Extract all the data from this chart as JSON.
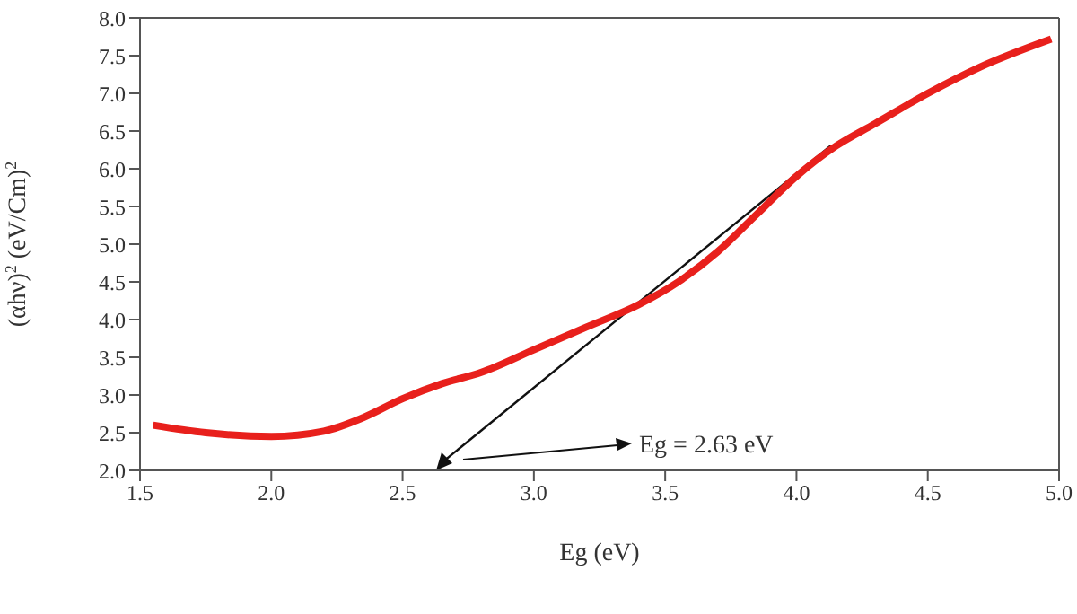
{
  "chart_data": {
    "type": "line",
    "xlabel": "Eg (eV)",
    "ylabel": "(αhν)$^{2}$ (eV/Cm)$^{2}$",
    "xlim": [
      1.5,
      5.0
    ],
    "xticks": [
      {
        "value": 1.5,
        "label": "1.5"
      },
      {
        "value": 2,
        "label": "2.0"
      },
      {
        "value": 2.5,
        "label": "2.5"
      },
      {
        "value": 3,
        "label": "3.0"
      },
      {
        "value": 3.5,
        "label": "3.5"
      },
      {
        "value": 4,
        "label": "4.0"
      },
      {
        "value": 4.5,
        "label": "4.5"
      },
      {
        "value": 5,
        "label": "5.0"
      }
    ],
    "ylim": [
      2.0,
      8.0
    ],
    "yticks": [
      {
        "value": 2,
        "label": "2.0"
      },
      {
        "value": 2.5,
        "label": "2.5"
      },
      {
        "value": 3,
        "label": "3.0"
      },
      {
        "value": 3.5,
        "label": "3.5"
      },
      {
        "value": 4,
        "label": "4.0"
      },
      {
        "value": 4.5,
        "label": "4.5"
      },
      {
        "value": 5,
        "label": "5.0"
      },
      {
        "value": 5.5,
        "label": "5.5"
      },
      {
        "value": 6,
        "label": "6.0"
      },
      {
        "value": 6.5,
        "label": "6.5"
      },
      {
        "value": 7,
        "label": "7.0"
      },
      {
        "value": 7.5,
        "label": "7.5"
      },
      {
        "value": 8,
        "label": "8.0"
      }
    ],
    "marker": "none",
    "line_style": "solid",
    "series": [
      {
        "color": "#e8201c",
        "x": [
          1.55,
          1.75,
          2.0,
          2.2,
          2.35,
          2.5,
          2.65,
          2.8,
          3.0,
          3.2,
          3.4,
          3.55,
          3.7,
          3.85,
          4.0,
          4.15,
          4.3,
          4.5,
          4.7,
          4.97
        ],
        "values": [
          2.6,
          2.5,
          2.45,
          2.52,
          2.7,
          2.95,
          3.15,
          3.3,
          3.6,
          3.9,
          4.2,
          4.5,
          4.9,
          5.4,
          5.9,
          6.3,
          6.6,
          7.0,
          7.35,
          7.72
        ]
      }
    ],
    "annotations": [
      "Eg = 2.63 eV"
    ]
  }
}
